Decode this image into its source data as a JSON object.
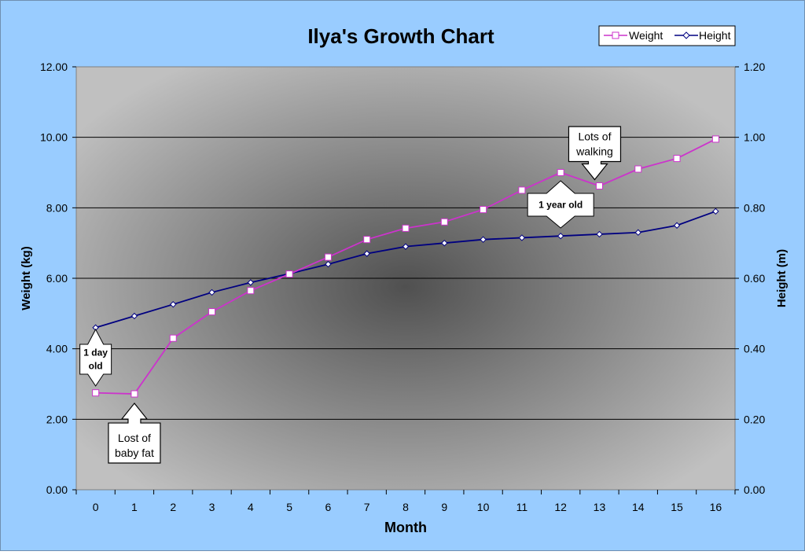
{
  "chart_data": {
    "type": "line",
    "title": "Ilya's Growth Chart",
    "xlabel": "Month",
    "ylabel": "Weight (kg)",
    "y2label": "Height (m)",
    "x": [
      0,
      1,
      2,
      3,
      4,
      5,
      6,
      7,
      8,
      9,
      10,
      11,
      12,
      13,
      14,
      15,
      16
    ],
    "xlim": [
      0,
      16
    ],
    "ylim": [
      0,
      12
    ],
    "y2lim": [
      0,
      1.2
    ],
    "y_ticks": [
      "0.00",
      "2.00",
      "4.00",
      "6.00",
      "8.00",
      "10.00",
      "12.00"
    ],
    "y2_ticks": [
      "0.00",
      "0.20",
      "0.40",
      "0.60",
      "0.80",
      "1.00",
      "1.20"
    ],
    "x_ticks": [
      "0",
      "1",
      "2",
      "3",
      "4",
      "5",
      "6",
      "7",
      "8",
      "9",
      "10",
      "11",
      "12",
      "13",
      "14",
      "15",
      "16"
    ],
    "grid": true,
    "legend_position": "top-right",
    "series": [
      {
        "name": "Weight",
        "axis": "left",
        "color": "#cc33cc",
        "marker": "square",
        "values": [
          2.75,
          2.72,
          4.3,
          5.05,
          5.65,
          6.12,
          6.6,
          7.1,
          7.42,
          7.6,
          7.95,
          8.5,
          9.0,
          8.62,
          9.1,
          9.4,
          9.95
        ]
      },
      {
        "name": "Height",
        "axis": "right",
        "color": "#000080",
        "marker": "diamond",
        "values": [
          0.46,
          0.493,
          0.526,
          0.56,
          0.588,
          0.613,
          0.64,
          0.67,
          0.69,
          0.7,
          0.71,
          0.715,
          0.72,
          0.725,
          0.73,
          0.75,
          0.79
        ]
      }
    ],
    "annotations": [
      {
        "text": [
          "1 day",
          "old"
        ],
        "x": 0,
        "bold": true
      },
      {
        "text": [
          "Lost of",
          "baby fat"
        ],
        "x": 1,
        "bold": false
      },
      {
        "text": [
          "1 year old"
        ],
        "x": 12,
        "bold": true
      },
      {
        "text": [
          "Lots of",
          "walking"
        ],
        "x": 13,
        "bold": false
      }
    ],
    "colors": {
      "background": "#99ccff",
      "plot_center": "#505050",
      "plot_edge": "#c0c0c0"
    }
  }
}
